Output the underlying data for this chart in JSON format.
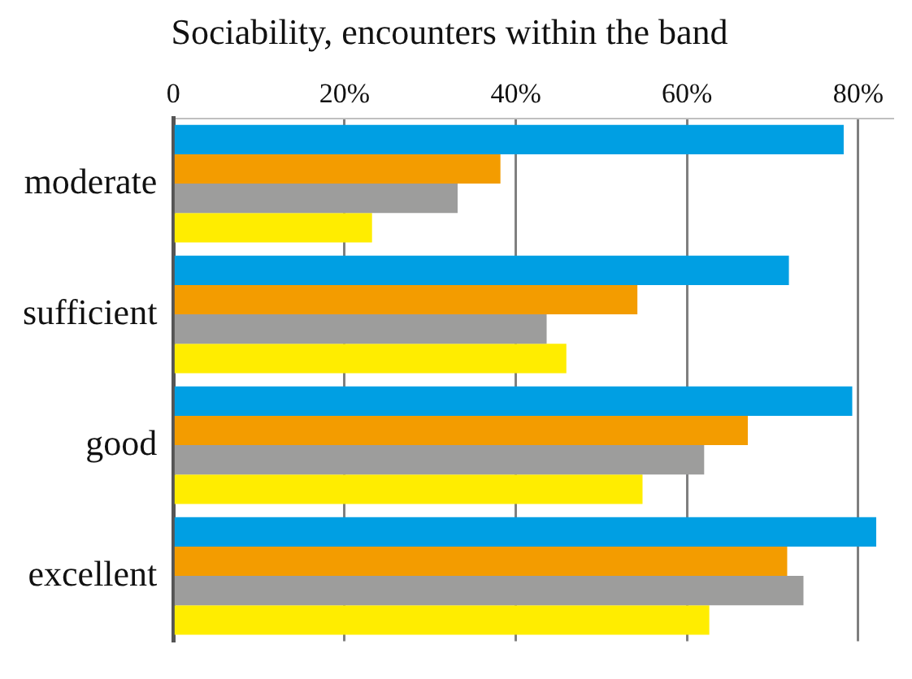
{
  "chart_data": {
    "type": "bar",
    "orientation": "horizontal",
    "title": "Sociability, encounters within the band",
    "categories": [
      "moderate",
      "sufficient",
      "good",
      "excellent"
    ],
    "series": [
      {
        "color": "#009fe3",
        "values": [
          78.3,
          71.9,
          79.3,
          82.1
        ]
      },
      {
        "color": "#f39c00",
        "values": [
          38.2,
          54.2,
          67.1,
          71.7
        ]
      },
      {
        "color": "#9d9d9c",
        "values": [
          33.2,
          43.6,
          62.0,
          73.6
        ]
      },
      {
        "color": "#ffed00",
        "values": [
          23.2,
          45.9,
          54.8,
          62.6
        ]
      }
    ],
    "xlim": [
      0,
      84
    ],
    "xticks": [
      0,
      {
        "value": 20,
        "label": "20%"
      },
      {
        "value": 40,
        "label": "40%"
      },
      {
        "value": 60,
        "label": "60%"
      },
      {
        "value": 80,
        "label": "80%"
      }
    ],
    "grid": "x",
    "legend": false
  }
}
